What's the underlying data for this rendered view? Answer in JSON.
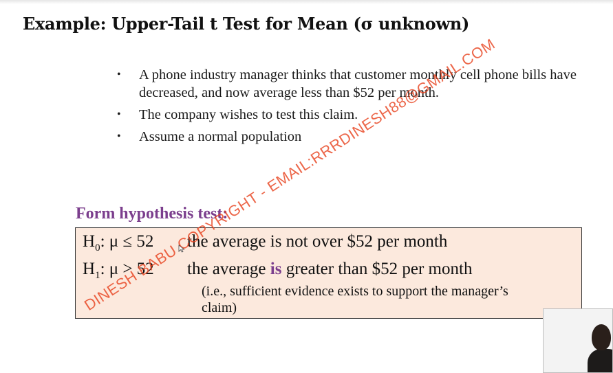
{
  "slide": {
    "title": "Example: Upper-Tail t Test for Mean  (σ unknown)",
    "bullets": [
      "A phone industry manager thinks that customer monthly cell phone bills have decreased, and now average less than $52 per month.",
      "The company wishes to test this claim.",
      "Assume a normal population"
    ],
    "subheading": "Form hypothesis test:"
  },
  "hypotheses": {
    "h0_letter": "H",
    "h0_sub": "0",
    "h0_expr": ": μ ≤ 52",
    "h0_text": "the average is not over $52 per month",
    "h1_letter": "H",
    "h1_sub": "1",
    "h1_expr": ": μ > 52",
    "h1_text_before": "the average ",
    "h1_text_emph": "is",
    "h1_text_after": " greater than $52 per month",
    "note": "(i.e., sufficient evidence exists to support the manager’s claim)"
  },
  "watermark": {
    "text": "DINESH BABU COPYRIGHT - EMAIL:RRRDINESH88@GMAIL.COM",
    "color": "#e8401c"
  },
  "colors": {
    "accent_purple": "#7b3e8d",
    "box_fill": "#fce9dd"
  },
  "icons": {
    "cursor": "mouse-pointer-icon",
    "bullet": "bullet-dot-icon"
  }
}
